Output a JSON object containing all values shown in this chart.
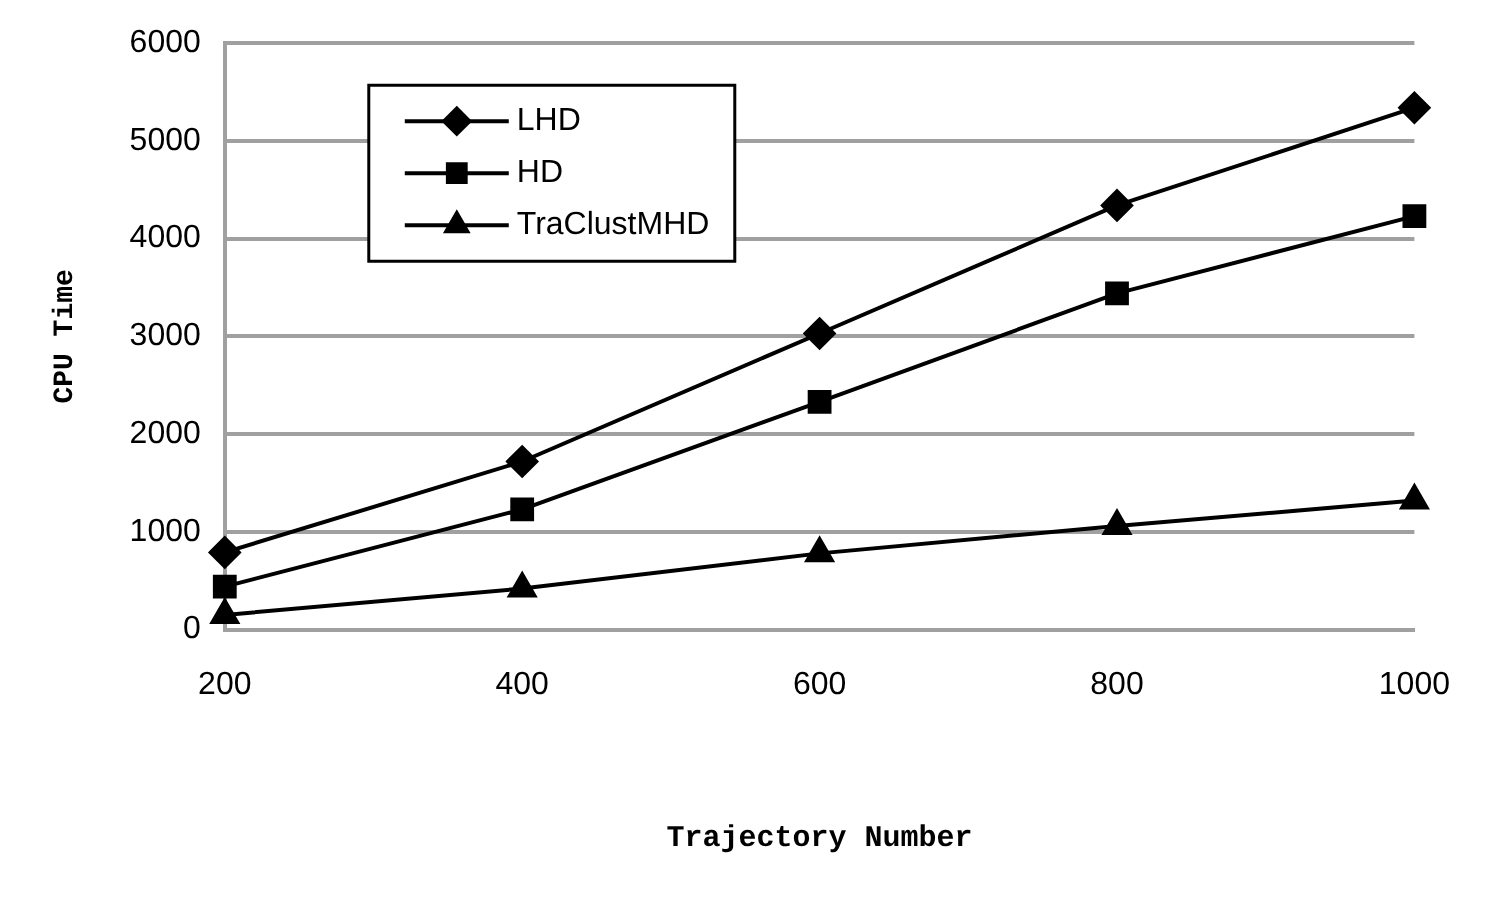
{
  "chart_data": {
    "type": "line",
    "xlabel": "Trajectory Number",
    "ylabel": "CPU Time",
    "x": [
      200,
      400,
      600,
      800,
      1000
    ],
    "series": [
      {
        "name": "LHD",
        "color": "#000000",
        "marker": "diamond",
        "values": [
          790,
          1720,
          3030,
          4340,
          5340
        ]
      },
      {
        "name": "HD",
        "color": "#000000",
        "marker": "square",
        "values": [
          440,
          1230,
          2330,
          3440,
          4230
        ]
      },
      {
        "name": "TraClustMHD",
        "color": "#000000",
        "marker": "triangle",
        "values": [
          150,
          420,
          780,
          1060,
          1320
        ]
      }
    ],
    "xlim": [
      200,
      1000
    ],
    "xticks": [
      200,
      400,
      600,
      800,
      1000
    ],
    "ylim": [
      0,
      6000
    ],
    "yticks": [
      0,
      1000,
      2000,
      3000,
      4000,
      5000,
      6000
    ],
    "grid": "y",
    "legend": "top left",
    "line_style": "solid"
  }
}
